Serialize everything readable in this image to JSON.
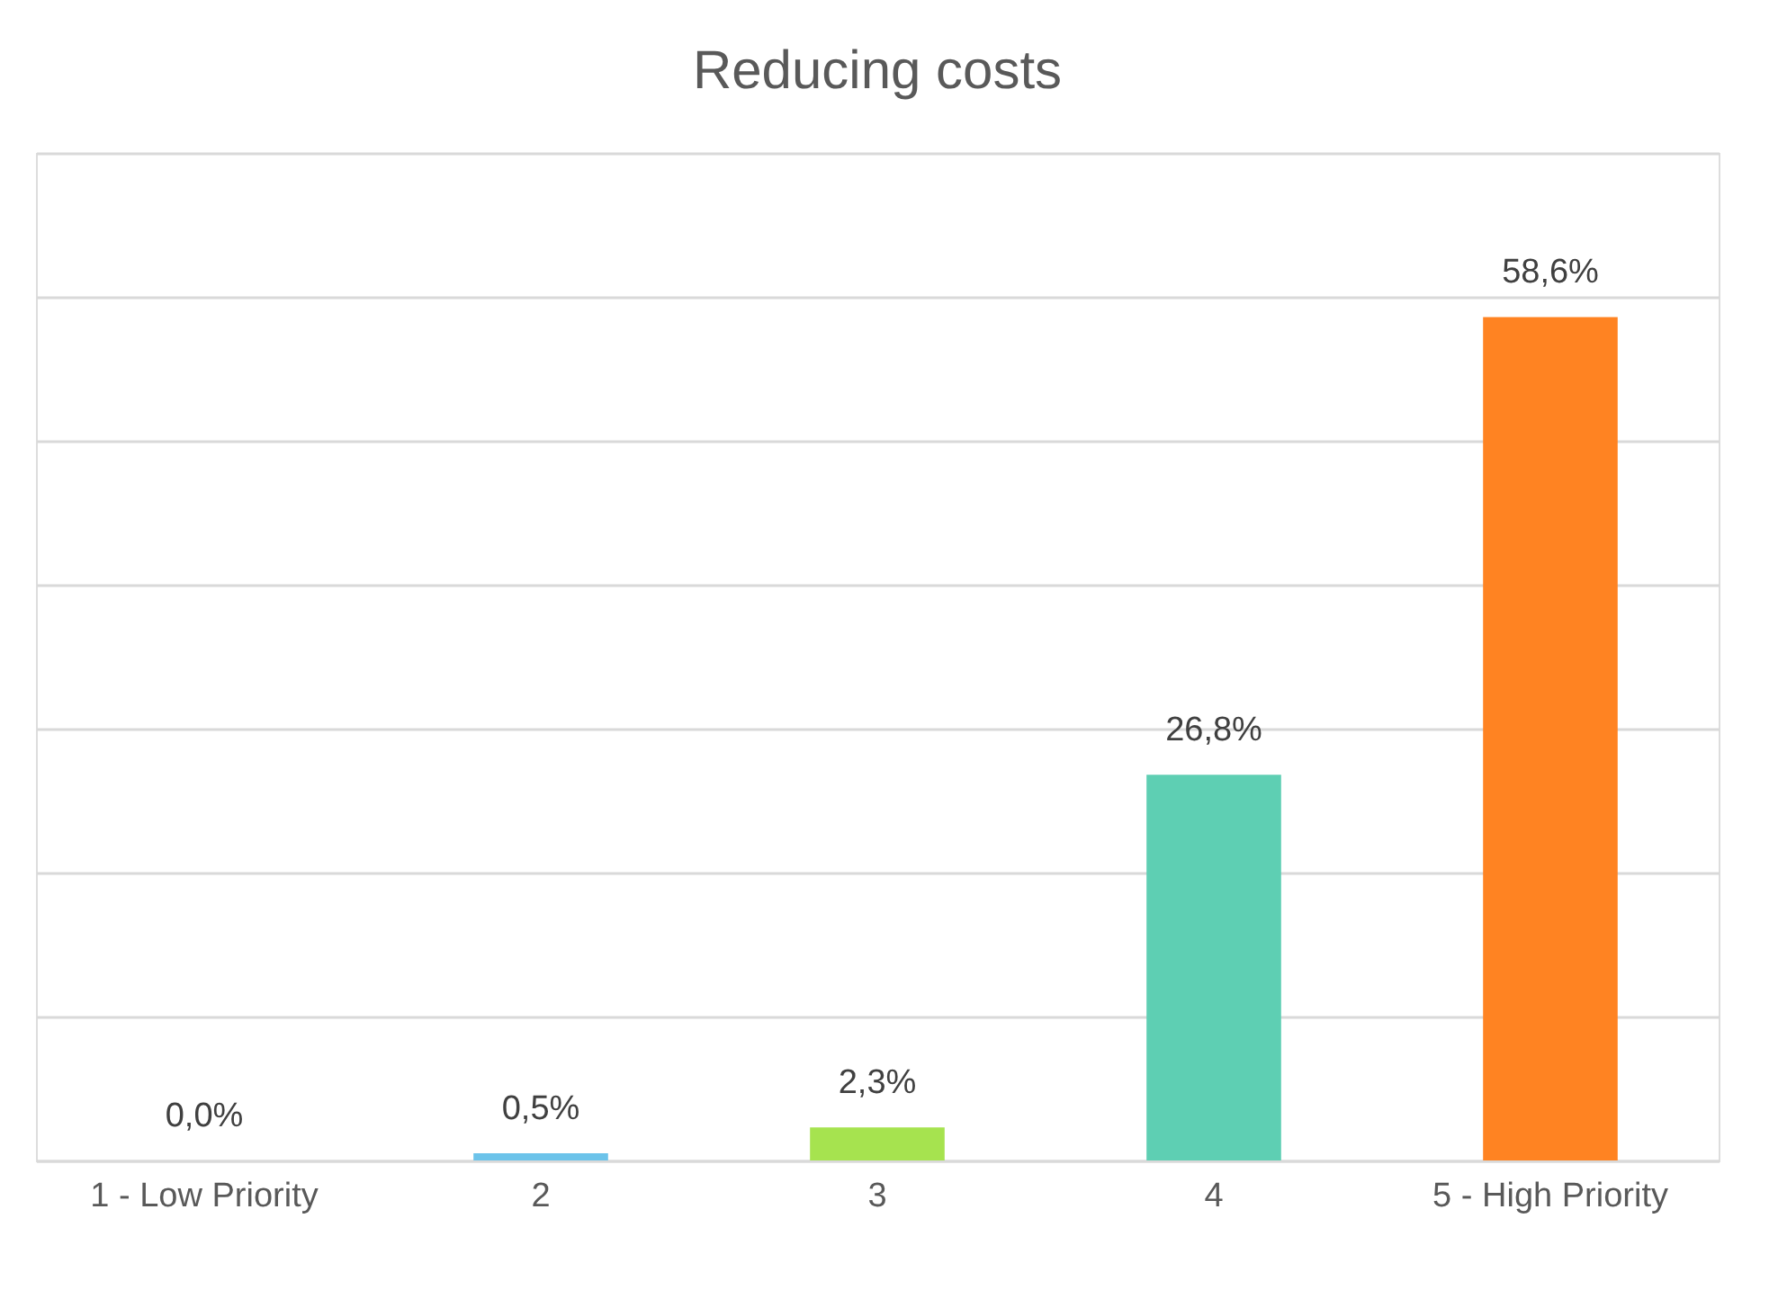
{
  "chart_data": {
    "type": "bar",
    "title": "Reducing costs",
    "categories": [
      "1 - Low Priority",
      "2",
      "3",
      "4",
      "5 - High Priority"
    ],
    "values": [
      0.0,
      0.5,
      2.3,
      26.8,
      58.6
    ],
    "colors": [
      "#5b9bd5",
      "#6cc3ea",
      "#a6e34f",
      "#5ecfb3",
      "#ff8322"
    ],
    "value_labels": [
      "0,0%",
      "0,5%",
      "2,3%",
      "26,8%",
      "58,6%"
    ],
    "ylim": [
      0,
      70
    ],
    "yticks": [
      {
        "value": 0,
        "label": null
      },
      {
        "value": 10,
        "label": null
      },
      {
        "value": 20,
        "label": null
      },
      {
        "value": 30,
        "label": null
      },
      {
        "value": 40,
        "label": null
      },
      {
        "value": 50,
        "label": null
      },
      {
        "value": 60,
        "label": null
      },
      {
        "value": 70,
        "label": null
      }
    ],
    "tick_labels": "x",
    "grid": "y"
  }
}
